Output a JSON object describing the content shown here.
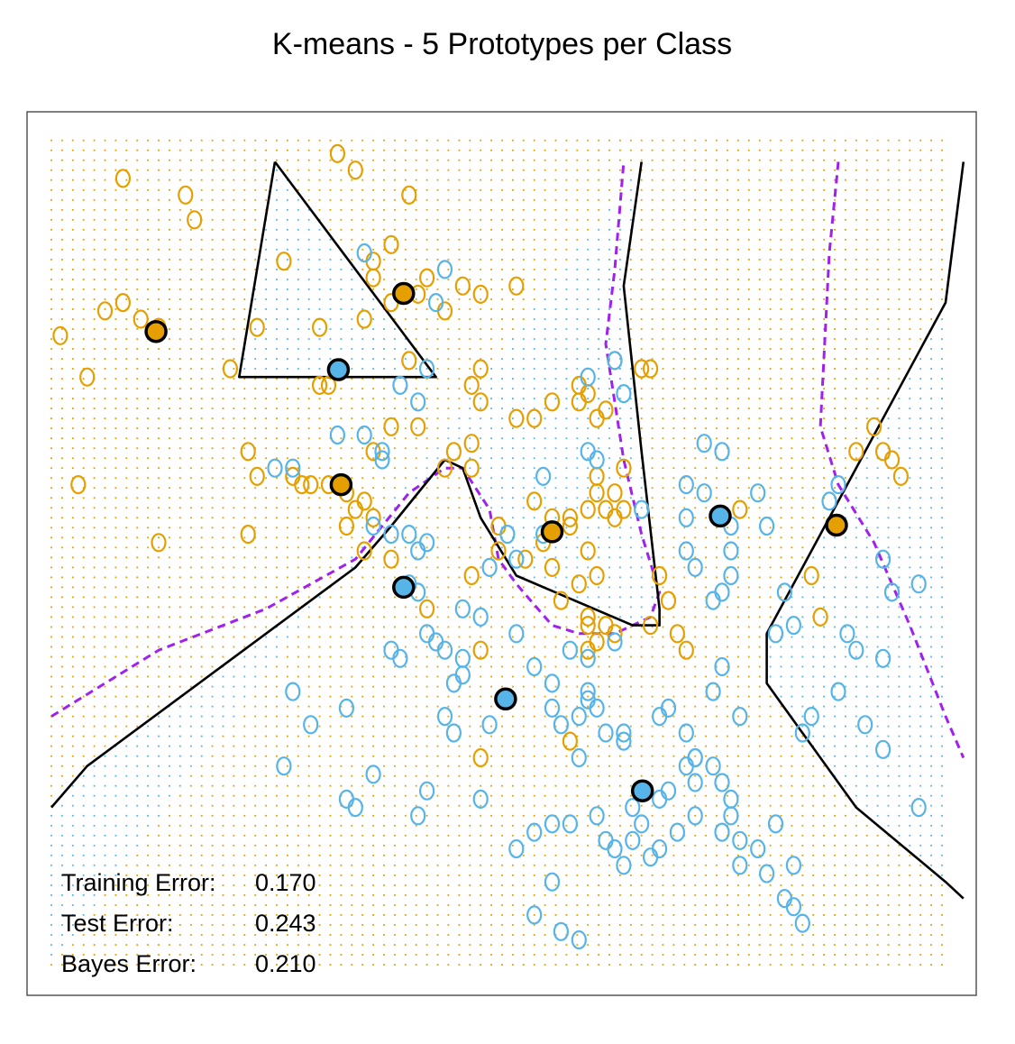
{
  "chart_data": {
    "type": "scatter",
    "title": "K-means - 5 Prototypes per Class",
    "xlabel": "",
    "ylabel": "",
    "xlim": [
      0,
      100
    ],
    "ylim": [
      0,
      100
    ],
    "axes_shown": false,
    "grid": false,
    "background_grid_dots": true,
    "colors": {
      "orange": "#E69F00",
      "blue": "#56B4E9",
      "bayes_boundary": "#A020F0",
      "kmeans_boundary": "#000000"
    },
    "series": [
      {
        "class": "orange",
        "role": "training",
        "points": [
          [
            8,
            95
          ],
          [
            15,
            93
          ],
          [
            16,
            90
          ],
          [
            32,
            98
          ],
          [
            34,
            96
          ],
          [
            40,
            93
          ],
          [
            38,
            87
          ],
          [
            26,
            85
          ],
          [
            36,
            85
          ],
          [
            36,
            83
          ],
          [
            42,
            83
          ],
          [
            46,
            82
          ],
          [
            38,
            80
          ],
          [
            41,
            81
          ],
          [
            44,
            79
          ],
          [
            48,
            81
          ],
          [
            52,
            82
          ],
          [
            8,
            80
          ],
          [
            6,
            79
          ],
          [
            10,
            78
          ],
          [
            12,
            77
          ],
          [
            1,
            76
          ],
          [
            4,
            71
          ],
          [
            23,
            77
          ],
          [
            30,
            77
          ],
          [
            35,
            78
          ],
          [
            31,
            70
          ],
          [
            30,
            70
          ],
          [
            38,
            65
          ],
          [
            36,
            62
          ],
          [
            41,
            65
          ],
          [
            45,
            62
          ],
          [
            47,
            63
          ],
          [
            44,
            60
          ],
          [
            47,
            60
          ],
          [
            22,
            62
          ],
          [
            23,
            59
          ],
          [
            27,
            59
          ],
          [
            29,
            58
          ],
          [
            31,
            58
          ],
          [
            33,
            57
          ],
          [
            35,
            56
          ],
          [
            34,
            55
          ],
          [
            33,
            53
          ],
          [
            36,
            54
          ],
          [
            28,
            58
          ],
          [
            20,
            72
          ],
          [
            40,
            73
          ],
          [
            48,
            72
          ],
          [
            47,
            70
          ],
          [
            48,
            68
          ],
          [
            52,
            66
          ],
          [
            54,
            66
          ],
          [
            56,
            68
          ],
          [
            59,
            68
          ],
          [
            60,
            69
          ],
          [
            59,
            70
          ],
          [
            61,
            66
          ],
          [
            62,
            67
          ],
          [
            63,
            73
          ],
          [
            66,
            72
          ],
          [
            67,
            72
          ],
          [
            61,
            59
          ],
          [
            61,
            57
          ],
          [
            63,
            57
          ],
          [
            62,
            55
          ],
          [
            54,
            56
          ],
          [
            56,
            54
          ],
          [
            58,
            54
          ],
          [
            60,
            55
          ],
          [
            58,
            53
          ],
          [
            63,
            54
          ],
          [
            60,
            50
          ],
          [
            61,
            47
          ],
          [
            59,
            46
          ],
          [
            55,
            51
          ],
          [
            56,
            48
          ],
          [
            53,
            49
          ],
          [
            50,
            53
          ],
          [
            50,
            50
          ],
          [
            35,
            50
          ],
          [
            38,
            49
          ],
          [
            47,
            47
          ],
          [
            42,
            43
          ],
          [
            60,
            42
          ],
          [
            57,
            44
          ],
          [
            60,
            41
          ],
          [
            62,
            41
          ],
          [
            63,
            40
          ],
          [
            60,
            38
          ],
          [
            61,
            39
          ],
          [
            64,
            55
          ],
          [
            64,
            60
          ],
          [
            68,
            47
          ],
          [
            69,
            44
          ],
          [
            70,
            40
          ],
          [
            71,
            38
          ],
          [
            75,
            54
          ],
          [
            77,
            55
          ],
          [
            85,
            47
          ],
          [
            90,
            62
          ],
          [
            92,
            65
          ],
          [
            93,
            62
          ],
          [
            95,
            59
          ],
          [
            94,
            61
          ],
          [
            86,
            42
          ],
          [
            48,
            38
          ],
          [
            3,
            58
          ],
          [
            12,
            51
          ],
          [
            22,
            52
          ],
          [
            48,
            25
          ],
          [
            58,
            27
          ],
          [
            67,
            41
          ]
        ]
      },
      {
        "class": "blue",
        "role": "training",
        "points": [
          [
            35,
            86
          ],
          [
            44,
            84
          ],
          [
            43,
            80
          ],
          [
            42,
            72
          ],
          [
            39,
            70
          ],
          [
            41,
            68
          ],
          [
            60,
            71
          ],
          [
            63,
            73
          ],
          [
            64,
            69
          ],
          [
            35,
            64
          ],
          [
            32,
            64
          ],
          [
            37,
            62
          ],
          [
            37,
            61
          ],
          [
            25,
            60
          ],
          [
            27,
            60
          ],
          [
            55,
            59
          ],
          [
            60,
            62
          ],
          [
            61,
            61
          ],
          [
            73,
            63
          ],
          [
            75,
            62
          ],
          [
            71,
            58
          ],
          [
            73,
            57
          ],
          [
            79,
            57
          ],
          [
            88,
            58
          ],
          [
            87,
            56
          ],
          [
            80,
            53
          ],
          [
            76,
            53
          ],
          [
            71,
            54
          ],
          [
            66,
            55
          ],
          [
            71,
            50
          ],
          [
            72,
            48
          ],
          [
            76,
            50
          ],
          [
            76,
            47
          ],
          [
            74,
            44
          ],
          [
            75,
            45
          ],
          [
            82,
            45
          ],
          [
            83,
            41
          ],
          [
            81,
            40
          ],
          [
            89,
            40
          ],
          [
            90,
            38
          ],
          [
            93,
            37
          ],
          [
            94,
            45
          ],
          [
            97,
            46
          ],
          [
            93,
            49
          ],
          [
            36,
            53
          ],
          [
            38,
            52
          ],
          [
            40,
            52
          ],
          [
            42,
            51
          ],
          [
            41,
            50
          ],
          [
            51,
            52
          ],
          [
            55,
            52
          ],
          [
            52,
            49
          ],
          [
            49,
            48
          ],
          [
            40,
            46
          ],
          [
            41,
            45
          ],
          [
            42,
            40
          ],
          [
            38,
            38
          ],
          [
            39,
            37
          ],
          [
            48,
            42
          ],
          [
            52,
            40
          ],
          [
            54,
            36
          ],
          [
            56,
            34
          ],
          [
            60,
            32
          ],
          [
            56,
            31
          ],
          [
            57,
            29
          ],
          [
            59,
            30
          ],
          [
            61,
            31
          ],
          [
            62,
            28
          ],
          [
            64,
            28
          ],
          [
            44,
            38
          ],
          [
            46,
            37
          ],
          [
            46,
            35
          ],
          [
            45,
            34
          ],
          [
            43,
            39
          ],
          [
            46,
            43
          ],
          [
            58,
            38
          ],
          [
            60,
            37
          ],
          [
            63,
            39
          ],
          [
            60,
            33
          ],
          [
            59,
            25
          ],
          [
            64,
            27
          ],
          [
            68,
            30
          ],
          [
            69,
            31
          ],
          [
            75,
            36
          ],
          [
            74,
            33
          ],
          [
            77,
            30
          ],
          [
            71,
            28
          ],
          [
            72,
            25
          ],
          [
            75,
            22
          ],
          [
            72,
            22
          ],
          [
            74,
            24
          ],
          [
            76,
            20
          ],
          [
            61,
            18
          ],
          [
            62,
            15
          ],
          [
            63,
            14
          ],
          [
            64,
            12
          ],
          [
            65,
            15
          ],
          [
            67,
            13
          ],
          [
            68,
            14
          ],
          [
            70,
            16
          ],
          [
            72,
            18
          ],
          [
            75,
            16
          ],
          [
            77,
            12
          ],
          [
            80,
            11
          ],
          [
            83,
            12
          ],
          [
            82,
            8
          ],
          [
            83,
            7
          ],
          [
            84,
            5
          ],
          [
            57,
            4
          ],
          [
            34,
            19
          ],
          [
            33,
            20
          ],
          [
            41,
            18
          ],
          [
            42,
            21
          ],
          [
            36,
            23
          ],
          [
            26,
            24
          ],
          [
            33,
            31
          ],
          [
            27,
            33
          ],
          [
            29,
            29
          ],
          [
            44,
            30
          ],
          [
            45,
            28
          ],
          [
            49,
            29
          ],
          [
            48,
            20
          ],
          [
            59,
            3
          ],
          [
            54,
            6
          ],
          [
            56,
            10
          ],
          [
            52,
            14
          ],
          [
            54,
            16
          ],
          [
            56,
            17
          ],
          [
            58,
            17
          ],
          [
            65,
            19
          ],
          [
            66,
            17
          ],
          [
            68,
            20
          ],
          [
            69,
            21
          ],
          [
            71,
            24
          ],
          [
            72,
            25
          ],
          [
            76,
            18
          ],
          [
            77,
            15
          ],
          [
            79,
            14
          ],
          [
            81,
            17
          ],
          [
            84,
            28
          ],
          [
            85,
            30
          ],
          [
            88,
            33
          ],
          [
            91,
            29
          ],
          [
            93,
            26
          ],
          [
            97,
            19
          ]
        ]
      },
      {
        "class": "orange",
        "role": "prototype",
        "points": [
          [
            11.7,
            76.5
          ],
          [
            39.4,
            81.1
          ],
          [
            32.4,
            58.0
          ],
          [
            56.0,
            52.3
          ],
          [
            87.8,
            53.1
          ]
        ]
      },
      {
        "class": "blue",
        "role": "prototype",
        "points": [
          [
            32.1,
            71.9
          ],
          [
            74.8,
            54.2
          ],
          [
            39.4,
            45.6
          ],
          [
            50.8,
            32.1
          ],
          [
            66.1,
            21.0
          ]
        ]
      }
    ],
    "boundaries": {
      "kmeans": [
        [
          [
            25,
            97
          ],
          [
            21,
            71
          ],
          [
            43,
            71
          ],
          [
            25,
            97
          ]
        ],
        [
          [
            0,
            19
          ],
          [
            4,
            24
          ],
          [
            24,
            40
          ],
          [
            34,
            48
          ],
          [
            38,
            53
          ],
          [
            44,
            61
          ],
          [
            46,
            60
          ],
          [
            48,
            54
          ],
          [
            52,
            47
          ],
          [
            65,
            41
          ],
          [
            68,
            41
          ],
          [
            68,
            43
          ],
          [
            66,
            62
          ],
          [
            64,
            82
          ],
          [
            66,
            97
          ]
        ],
        [
          [
            102,
            97
          ],
          [
            100,
            80
          ],
          [
            80,
            40
          ],
          [
            80,
            34
          ],
          [
            90,
            19
          ],
          [
            100,
            10
          ],
          [
            102,
            8
          ]
        ]
      ],
      "bayes": [
        [
          [
            0,
            30
          ],
          [
            12,
            38
          ],
          [
            24,
            43
          ],
          [
            34,
            49
          ],
          [
            40,
            57
          ],
          [
            44,
            60
          ],
          [
            46,
            60
          ],
          [
            49,
            55
          ],
          [
            50,
            49
          ],
          [
            52,
            46
          ],
          [
            56,
            41
          ],
          [
            59,
            40
          ],
          [
            63,
            40
          ],
          [
            67,
            42
          ],
          [
            68,
            45
          ],
          [
            66,
            52
          ],
          [
            64,
            61
          ],
          [
            62,
            75
          ],
          [
            63,
            84
          ],
          [
            64,
            97
          ]
        ],
        [
          [
            88,
            97
          ],
          [
            87,
            86
          ],
          [
            86,
            65
          ],
          [
            88,
            58
          ],
          [
            92,
            51
          ],
          [
            96,
            41
          ],
          [
            100,
            30
          ],
          [
            102,
            25
          ]
        ]
      ]
    },
    "annotations": {
      "training_error_label": "Training Error:",
      "training_error_value": "0.170",
      "test_error_label": "Test Error:",
      "test_error_value": "0.243",
      "bayes_error_label": "Bayes Error:",
      "bayes_error_value": "0.210"
    }
  }
}
